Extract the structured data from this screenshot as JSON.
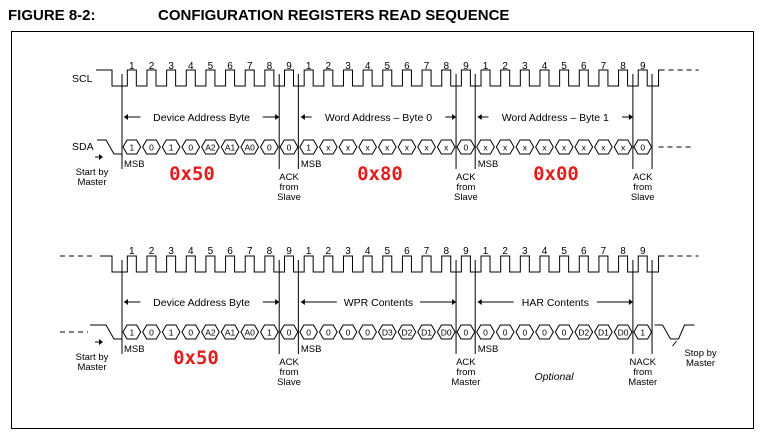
{
  "figure": {
    "label": "FIGURE 8-2:",
    "title": "CONFIGURATION REGISTERS READ SEQUENCE"
  },
  "colors": {
    "line": "#000000",
    "annotation": "#e02020"
  },
  "signals": {
    "scl": "SCL",
    "sda": "SDA"
  },
  "clock_bits": [
    "1",
    "2",
    "3",
    "4",
    "5",
    "6",
    "7",
    "8",
    "9",
    "1",
    "2",
    "3",
    "4",
    "5",
    "6",
    "7",
    "8",
    "9",
    "1",
    "2",
    "3",
    "4",
    "5",
    "6",
    "7",
    "8",
    "9"
  ],
  "write_sequence": {
    "start_label": [
      "Start by",
      "Master"
    ],
    "fields": [
      "Device Address Byte",
      "Word Address – Byte 0",
      "Word Address – Byte 1"
    ],
    "bits": [
      "1",
      "0",
      "1",
      "0",
      "A2",
      "A1",
      "A0",
      "0",
      "0",
      "1",
      "x",
      "x",
      "x",
      "x",
      "x",
      "x",
      "x",
      "0",
      "x",
      "x",
      "x",
      "x",
      "x",
      "x",
      "x",
      "x",
      "0"
    ],
    "msb_label": "MSB",
    "acks": [
      [
        "ACK",
        "from",
        "Slave"
      ],
      [
        "ACK",
        "from",
        "Slave"
      ],
      [
        "ACK",
        "from",
        "Slave"
      ]
    ],
    "annotations": [
      "0x50",
      "0x80",
      "0x00"
    ]
  },
  "read_sequence": {
    "start_label": [
      "Start by",
      "Master"
    ],
    "stop_label": [
      "Stop by",
      "Master"
    ],
    "fields": [
      "Device Address Byte",
      "WPR Contents",
      "HAR Contents"
    ],
    "bits": [
      "1",
      "0",
      "1",
      "0",
      "A2",
      "A1",
      "A0",
      "1",
      "0",
      "0",
      "0",
      "0",
      "0",
      "D3",
      "D2",
      "D1",
      "D0",
      "0",
      "0",
      "0",
      "0",
      "0",
      "0",
      "D2",
      "D1",
      "D0",
      "1"
    ],
    "msb_label": "MSB",
    "acks": [
      [
        "ACK",
        "from",
        "Slave"
      ],
      [
        "ACK",
        "from",
        "Master"
      ],
      [
        "NACK",
        "from",
        "Master"
      ]
    ],
    "optional_label": "Optional",
    "annotations": [
      "0x50"
    ]
  }
}
